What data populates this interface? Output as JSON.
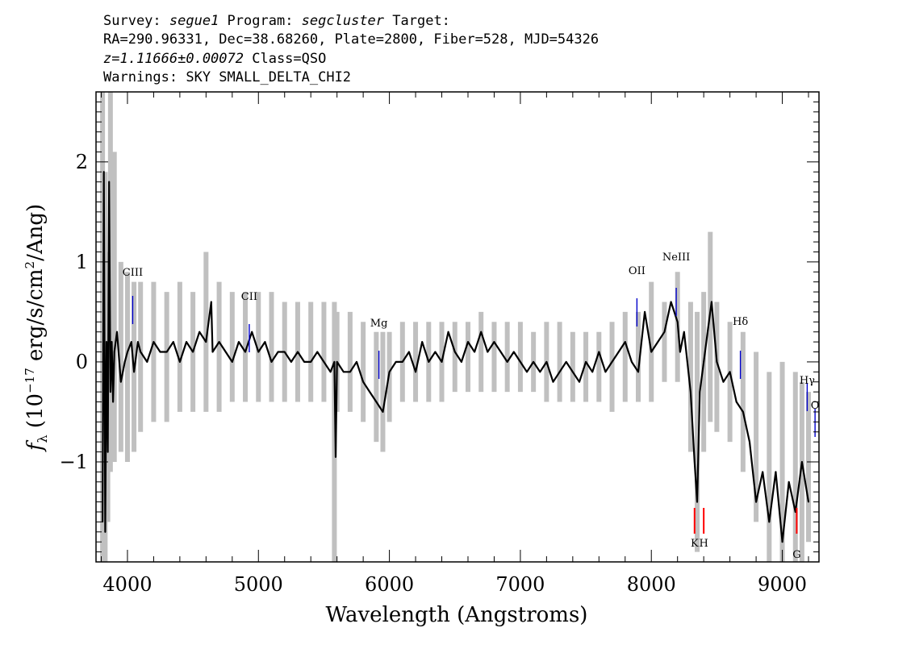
{
  "header": {
    "line1_a": "Survey: ",
    "survey": "segue1",
    "line1_b": " Program: ",
    "program": "segcluster",
    "line1_c": " Target:",
    "line2": "RA=290.96331, Dec=38.68260, Plate=2800, Fiber=528, MJD=54326",
    "redshift": "z=1.11666±0.00072",
    "class_text": " Class=QSO",
    "warnings": "Warnings: SKY SMALL_DELTA_CHI2"
  },
  "chart_data": {
    "type": "line",
    "xlabel": "Wavelength (Angstroms)",
    "ylabel": "f_λ (10^-17 erg/s/cm^2/Ang)",
    "xlim": [
      3760,
      9280
    ],
    "ylim": [
      -2.0,
      2.7
    ],
    "x_ticks": [
      4000,
      5000,
      6000,
      7000,
      8000,
      9000
    ],
    "y_ticks": [
      -1,
      0,
      1,
      2
    ],
    "y_tick_labels": [
      "−1",
      "0",
      "1",
      "2"
    ],
    "series": [
      {
        "role": "error",
        "color": "#c0c0c0",
        "x": [
          3810,
          3830,
          3850,
          3870,
          3900,
          3950,
          4000,
          4050,
          4100,
          4200,
          4300,
          4400,
          4500,
          4600,
          4700,
          4800,
          4900,
          5000,
          5100,
          5200,
          5300,
          5400,
          5500,
          5580,
          5600,
          5700,
          5800,
          5900,
          5950,
          6000,
          6100,
          6200,
          6300,
          6400,
          6500,
          6600,
          6700,
          6800,
          6900,
          7000,
          7100,
          7200,
          7300,
          7400,
          7500,
          7600,
          7700,
          7800,
          7900,
          8000,
          8100,
          8200,
          8300,
          8350,
          8400,
          8450,
          8500,
          8600,
          8700,
          8800,
          8900,
          9000,
          9100,
          9150,
          9200
        ],
        "lo": [
          -2.0,
          -2.0,
          -1.6,
          -1.1,
          -1.0,
          -0.9,
          -1.0,
          -0.9,
          -0.7,
          -0.6,
          -0.6,
          -0.5,
          -0.5,
          -0.5,
          -0.5,
          -0.4,
          -0.4,
          -0.4,
          -0.4,
          -0.4,
          -0.4,
          -0.4,
          -0.4,
          -2.0,
          -0.5,
          -0.5,
          -0.6,
          -0.8,
          -0.9,
          -0.6,
          -0.4,
          -0.4,
          -0.4,
          -0.4,
          -0.3,
          -0.3,
          -0.3,
          -0.3,
          -0.3,
          -0.3,
          -0.3,
          -0.4,
          -0.4,
          -0.4,
          -0.4,
          -0.4,
          -0.5,
          -0.4,
          -0.4,
          -0.4,
          -0.2,
          -0.2,
          -0.9,
          -1.9,
          -0.9,
          -0.6,
          -0.7,
          -0.8,
          -1.1,
          -1.6,
          -2.0,
          -2.0,
          -2.0,
          -2.0,
          -1.8
        ],
        "hi": [
          2.7,
          1.9,
          1.1,
          2.7,
          2.1,
          1.0,
          0.9,
          0.8,
          0.8,
          0.8,
          0.7,
          0.8,
          0.7,
          1.1,
          0.8,
          0.7,
          0.7,
          0.7,
          0.7,
          0.6,
          0.6,
          0.6,
          0.6,
          0.6,
          0.5,
          0.5,
          0.4,
          0.3,
          0.3,
          0.3,
          0.4,
          0.4,
          0.4,
          0.4,
          0.4,
          0.4,
          0.5,
          0.4,
          0.4,
          0.4,
          0.3,
          0.4,
          0.4,
          0.3,
          0.3,
          0.3,
          0.4,
          0.5,
          0.5,
          0.8,
          0.6,
          0.9,
          0.6,
          0.5,
          0.7,
          1.3,
          0.6,
          0.4,
          0.3,
          0.1,
          -0.1,
          0.0,
          -0.1,
          -0.2,
          -0.3
        ]
      },
      {
        "role": "flux",
        "color": "#000000",
        "x": [
          3810,
          3820,
          3830,
          3840,
          3850,
          3860,
          3870,
          3880,
          3890,
          3900,
          3920,
          3950,
          3980,
          4000,
          4030,
          4050,
          4080,
          4100,
          4150,
          4200,
          4250,
          4300,
          4350,
          4400,
          4450,
          4500,
          4550,
          4600,
          4640,
          4650,
          4700,
          4750,
          4800,
          4850,
          4900,
          4950,
          5000,
          5050,
          5100,
          5150,
          5200,
          5250,
          5300,
          5350,
          5400,
          5450,
          5500,
          5550,
          5580,
          5590,
          5600,
          5650,
          5700,
          5750,
          5800,
          5850,
          5900,
          5950,
          6000,
          6050,
          6100,
          6150,
          6200,
          6250,
          6300,
          6350,
          6400,
          6450,
          6500,
          6550,
          6600,
          6650,
          6700,
          6750,
          6800,
          6850,
          6900,
          6950,
          7000,
          7050,
          7100,
          7150,
          7200,
          7250,
          7300,
          7350,
          7400,
          7450,
          7500,
          7550,
          7600,
          7650,
          7700,
          7750,
          7800,
          7850,
          7900,
          7950,
          8000,
          8050,
          8100,
          8150,
          8200,
          8220,
          8250,
          8300,
          8330,
          8350,
          8370,
          8400,
          8430,
          8460,
          8500,
          8550,
          8600,
          8650,
          8700,
          8750,
          8800,
          8850,
          8900,
          8950,
          9000,
          9050,
          9100,
          9150,
          9200
        ],
        "y": [
          -1.6,
          1.9,
          -1.7,
          0.2,
          -0.9,
          1.8,
          -0.3,
          0.2,
          -0.4,
          0.1,
          0.3,
          -0.2,
          0.0,
          0.1,
          0.2,
          -0.1,
          0.2,
          0.1,
          0.0,
          0.2,
          0.1,
          0.1,
          0.2,
          0.0,
          0.2,
          0.1,
          0.3,
          0.2,
          0.6,
          0.1,
          0.2,
          0.1,
          0.0,
          0.2,
          0.1,
          0.3,
          0.1,
          0.2,
          0.0,
          0.1,
          0.1,
          0.0,
          0.1,
          0.0,
          0.0,
          0.1,
          0.0,
          -0.1,
          0.0,
          -0.95,
          0.0,
          -0.1,
          -0.1,
          0.0,
          -0.2,
          -0.3,
          -0.4,
          -0.5,
          -0.1,
          0.0,
          0.0,
          0.1,
          -0.1,
          0.2,
          0.0,
          0.1,
          0.0,
          0.3,
          0.1,
          0.0,
          0.2,
          0.1,
          0.3,
          0.1,
          0.2,
          0.1,
          0.0,
          0.1,
          0.0,
          -0.1,
          0.0,
          -0.1,
          0.0,
          -0.2,
          -0.1,
          0.0,
          -0.1,
          -0.2,
          0.0,
          -0.1,
          0.1,
          -0.1,
          0.0,
          0.1,
          0.2,
          0.0,
          -0.1,
          0.5,
          0.1,
          0.2,
          0.3,
          0.6,
          0.4,
          0.1,
          0.3,
          -0.3,
          -1.0,
          -1.4,
          -0.3,
          0.0,
          0.3,
          0.6,
          0.0,
          -0.2,
          -0.1,
          -0.4,
          -0.5,
          -0.8,
          -1.4,
          -1.1,
          -1.6,
          -1.1,
          -1.8,
          -1.2,
          -1.5,
          -1.0,
          -1.4
        ]
      }
    ],
    "line_markers": [
      {
        "label": "CIII",
        "wavelength": 4040,
        "color": "#0000cc"
      },
      {
        "label": "CII",
        "wavelength": 4930,
        "color": "#0000cc"
      },
      {
        "label": "Mg",
        "wavelength": 5920,
        "color": "#0000cc"
      },
      {
        "label": "OII",
        "wavelength": 7890,
        "color": "#0000cc"
      },
      {
        "label": "NeIII",
        "wavelength": 8190,
        "color": "#0000cc"
      },
      {
        "label": "Hδ",
        "wavelength": 8680,
        "color": "#0000cc"
      },
      {
        "label": "Hγ",
        "wavelength": 9190,
        "color": "#0000cc"
      },
      {
        "label": "O",
        "wavelength": 9250,
        "color": "#0000cc"
      },
      {
        "label": "K",
        "wavelength": 8330,
        "color": "#ff0000"
      },
      {
        "label": "H",
        "wavelength": 8400,
        "color": "#ff0000"
      },
      {
        "label": "G",
        "wavelength": 9110,
        "color": "#ff0000"
      }
    ]
  }
}
